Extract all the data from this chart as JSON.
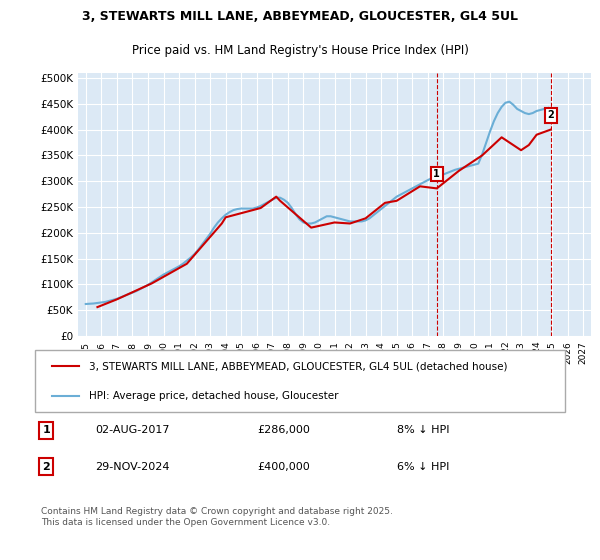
{
  "title_line1": "3, STEWARTS MILL LANE, ABBEYMEAD, GLOUCESTER, GL4 5UL",
  "title_line2": "Price paid vs. HM Land Registry's House Price Index (HPI)",
  "background_color": "#dce9f5",
  "plot_bg_color": "#dce9f5",
  "ylabel": "",
  "ylim": [
    0,
    510000
  ],
  "yticks": [
    0,
    50000,
    100000,
    150000,
    200000,
    250000,
    300000,
    350000,
    400000,
    450000,
    500000
  ],
  "ytick_labels": [
    "£0",
    "£50K",
    "£100K",
    "£150K",
    "£200K",
    "£250K",
    "£300K",
    "£350K",
    "£400K",
    "£450K",
    "£500K"
  ],
  "xlim_start": 1994.5,
  "xlim_end": 2027.5,
  "xticks": [
    1995,
    1996,
    1997,
    1998,
    1999,
    2000,
    2001,
    2002,
    2003,
    2004,
    2005,
    2006,
    2007,
    2008,
    2009,
    2010,
    2011,
    2012,
    2013,
    2014,
    2015,
    2016,
    2017,
    2018,
    2019,
    2020,
    2021,
    2022,
    2023,
    2024,
    2025,
    2026,
    2027
  ],
  "hpi_color": "#6baed6",
  "price_color": "#cc0000",
  "marker1_x": 2017.58,
  "marker1_y": 286000,
  "marker1_label": "1",
  "marker1_date": "02-AUG-2017",
  "marker1_price": "£286,000",
  "marker1_hpi": "8% ↓ HPI",
  "marker2_x": 2024.91,
  "marker2_y": 400000,
  "marker2_label": "2",
  "marker2_date": "29-NOV-2024",
  "marker2_price": "£400,000",
  "marker2_hpi": "6% ↓ HPI",
  "vline1_x": 2017.58,
  "vline2_x": 2024.91,
  "legend_line1": "3, STEWARTS MILL LANE, ABBEYMEAD, GLOUCESTER, GL4 5UL (detached house)",
  "legend_line2": "HPI: Average price, detached house, Gloucester",
  "footnote": "Contains HM Land Registry data © Crown copyright and database right 2025.\nThis data is licensed under the Open Government Licence v3.0.",
  "hpi_data_x": [
    1995.0,
    1995.25,
    1995.5,
    1995.75,
    1996.0,
    1996.25,
    1996.5,
    1996.75,
    1997.0,
    1997.25,
    1997.5,
    1997.75,
    1998.0,
    1998.25,
    1998.5,
    1998.75,
    1999.0,
    1999.25,
    1999.5,
    1999.75,
    2000.0,
    2000.25,
    2000.5,
    2000.75,
    2001.0,
    2001.25,
    2001.5,
    2001.75,
    2002.0,
    2002.25,
    2002.5,
    2002.75,
    2003.0,
    2003.25,
    2003.5,
    2003.75,
    2004.0,
    2004.25,
    2004.5,
    2004.75,
    2005.0,
    2005.25,
    2005.5,
    2005.75,
    2006.0,
    2006.25,
    2006.5,
    2006.75,
    2007.0,
    2007.25,
    2007.5,
    2007.75,
    2008.0,
    2008.25,
    2008.5,
    2008.75,
    2009.0,
    2009.25,
    2009.5,
    2009.75,
    2010.0,
    2010.25,
    2010.5,
    2010.75,
    2011.0,
    2011.25,
    2011.5,
    2011.75,
    2012.0,
    2012.25,
    2012.5,
    2012.75,
    2013.0,
    2013.25,
    2013.5,
    2013.75,
    2014.0,
    2014.25,
    2014.5,
    2014.75,
    2015.0,
    2015.25,
    2015.5,
    2015.75,
    2016.0,
    2016.25,
    2016.5,
    2016.75,
    2017.0,
    2017.25,
    2017.5,
    2017.75,
    2018.0,
    2018.25,
    2018.5,
    2018.75,
    2019.0,
    2019.25,
    2019.5,
    2019.75,
    2020.0,
    2020.25,
    2020.5,
    2020.75,
    2021.0,
    2021.25,
    2021.5,
    2021.75,
    2022.0,
    2022.25,
    2022.5,
    2022.75,
    2023.0,
    2023.25,
    2023.5,
    2023.75,
    2024.0,
    2024.25,
    2024.5,
    2024.75
  ],
  "hpi_data_y": [
    62000,
    62500,
    63000,
    64000,
    65000,
    66000,
    68000,
    70000,
    72000,
    75000,
    78000,
    81000,
    84000,
    87000,
    91000,
    95000,
    99000,
    104000,
    109000,
    114000,
    119000,
    123000,
    127000,
    131000,
    135000,
    140000,
    146000,
    152000,
    159000,
    168000,
    178000,
    188000,
    198000,
    210000,
    220000,
    228000,
    235000,
    240000,
    244000,
    246000,
    247000,
    247000,
    247000,
    247000,
    249000,
    252000,
    256000,
    260000,
    264000,
    268000,
    268000,
    264000,
    258000,
    248000,
    236000,
    226000,
    220000,
    218000,
    218000,
    220000,
    224000,
    228000,
    232000,
    232000,
    230000,
    228000,
    226000,
    224000,
    222000,
    222000,
    222000,
    222000,
    224000,
    228000,
    234000,
    240000,
    246000,
    252000,
    258000,
    264000,
    270000,
    274000,
    278000,
    282000,
    286000,
    290000,
    294000,
    298000,
    302000,
    306000,
    309000,
    311000,
    313000,
    316000,
    319000,
    322000,
    324000,
    326000,
    328000,
    330000,
    332000,
    334000,
    352000,
    374000,
    396000,
    416000,
    432000,
    444000,
    452000,
    454000,
    448000,
    440000,
    436000,
    432000,
    430000,
    432000,
    436000,
    438000,
    440000,
    442000
  ],
  "price_data_x": [
    1995.75,
    1997.0,
    1999.25,
    2001.5,
    2003.75,
    2004.0,
    2006.25,
    2007.25,
    2007.5,
    2009.5,
    2011.0,
    2012.0,
    2013.0,
    2014.25,
    2015.0,
    2016.5,
    2017.58,
    2019.0,
    2020.5,
    2021.75,
    2022.5,
    2023.0,
    2023.5,
    2024.0,
    2024.91
  ],
  "price_data_y": [
    56000,
    71000,
    102000,
    140000,
    218000,
    230000,
    248000,
    270000,
    262000,
    210000,
    220000,
    218000,
    228000,
    258000,
    262000,
    290000,
    286000,
    320000,
    350000,
    385000,
    370000,
    360000,
    370000,
    390000,
    400000
  ]
}
